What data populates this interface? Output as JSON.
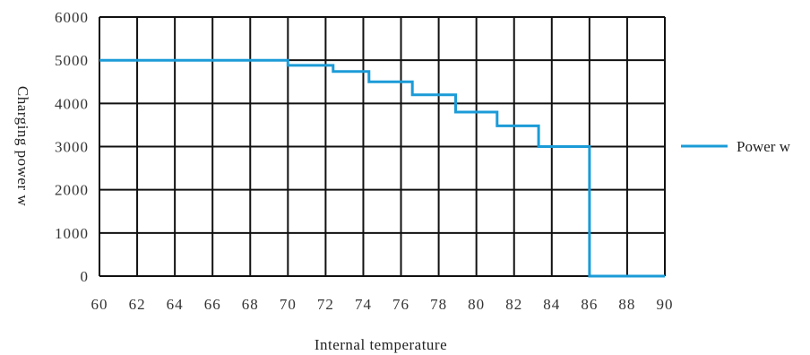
{
  "chart_data": {
    "type": "line",
    "title": "",
    "xlabel": "Internal temperature",
    "ylabel": "Charging power w",
    "xlim": [
      60,
      90
    ],
    "ylim": [
      0,
      6000
    ],
    "x_ticks": [
      "60",
      "62",
      "64",
      "66",
      "68",
      "70",
      "72",
      "74",
      "76",
      "78",
      "80",
      "82",
      "84",
      "86",
      "88",
      "90"
    ],
    "y_ticks": [
      "6000",
      "5000",
      "4000",
      "3000",
      "2000",
      "1000",
      "0"
    ],
    "grid": true,
    "legend_position": "right",
    "series": [
      {
        "name": "Power w",
        "color": "#1b9bd7",
        "step": true,
        "points": [
          {
            "x": 60,
            "y": 5000
          },
          {
            "x": 70,
            "y": 5000
          },
          {
            "x": 70,
            "y": 4880
          },
          {
            "x": 72.4,
            "y": 4880
          },
          {
            "x": 72.4,
            "y": 4740
          },
          {
            "x": 74.3,
            "y": 4740
          },
          {
            "x": 74.3,
            "y": 4500
          },
          {
            "x": 76.6,
            "y": 4500
          },
          {
            "x": 76.6,
            "y": 4200
          },
          {
            "x": 78.9,
            "y": 4200
          },
          {
            "x": 78.9,
            "y": 3800
          },
          {
            "x": 81.1,
            "y": 3800
          },
          {
            "x": 81.1,
            "y": 3480
          },
          {
            "x": 83.3,
            "y": 3480
          },
          {
            "x": 83.3,
            "y": 3000
          },
          {
            "x": 86,
            "y": 3000
          },
          {
            "x": 86,
            "y": 0
          },
          {
            "x": 90,
            "y": 0
          }
        ]
      }
    ]
  }
}
